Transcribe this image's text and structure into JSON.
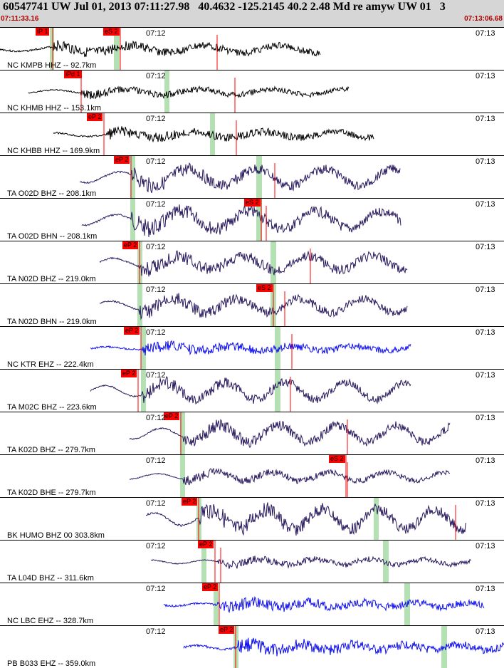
{
  "header": {
    "title": "60547741 UW Jul 01, 2013 07:11:27.98   40.4632 -125.2145 40.2 2.48 Md re amyw UW 01   3",
    "start_time": "07:11:33.16",
    "end_time": "07:13:06.68"
  },
  "colors": {
    "trace_black": "#000000",
    "trace_purple": "#2a1a5e",
    "trace_blue": "#1010ee",
    "pick_red": "#ff0000",
    "window_green": "#b4e0b4"
  },
  "panels": [
    {
      "label": "NC KMPB HHZ -- 92.7km",
      "tick_a": "07:12",
      "tick_b": "07:13",
      "picks": [
        "iP 1",
        "eS 2"
      ],
      "color": "#000000"
    },
    {
      "label": "NC KHMB HHZ -- 153.1km",
      "tick_a": "07:12",
      "tick_b": "07:13",
      "picks": [
        "iPd 1"
      ],
      "color": "#000000"
    },
    {
      "label": "NC KHBB HHZ -- 169.9km",
      "tick_a": "07:12",
      "tick_b": "07:13",
      "picks": [
        "eP 2"
      ],
      "color": "#000000"
    },
    {
      "label": "TA O02D BHZ -- 208.1km",
      "tick_a": "07:12",
      "tick_b": "07:13",
      "picks": [
        "eP 2"
      ],
      "color": "#2a1a5e"
    },
    {
      "label": "TA O02D BHN -- 208.1km",
      "tick_a": "07:12",
      "tick_b": "07:13",
      "picks": [
        "eS 2"
      ],
      "color": "#2a1a5e"
    },
    {
      "label": "TA N02D BHZ -- 219.0km",
      "tick_a": "07:12",
      "tick_b": "07:13",
      "picks": [
        "eP 2"
      ],
      "color": "#2a1a5e"
    },
    {
      "label": "TA N02D BHN -- 219.0km",
      "tick_a": "07:12",
      "tick_b": "07:13",
      "picks": [
        "eS 2"
      ],
      "color": "#2a1a5e"
    },
    {
      "label": "NC KTR EHZ -- 222.4km",
      "tick_a": "07:12",
      "tick_b": "07:13",
      "picks": [
        "eP 2"
      ],
      "color": "#1010ee"
    },
    {
      "label": "TA M02C BHZ -- 223.6km",
      "tick_a": "07:12",
      "tick_b": "07:13",
      "picks": [
        "eP 2"
      ],
      "color": "#2a1a5e"
    },
    {
      "label": "TA K02D BHZ -- 279.7km",
      "tick_a": "07:12",
      "tick_b": "07:13",
      "picks": [
        "eP 2"
      ],
      "color": "#2a1a5e"
    },
    {
      "label": "TA K02D BHE -- 279.7km",
      "tick_a": "07:12",
      "tick_b": "07:13",
      "picks": [
        "eS 2"
      ],
      "color": "#2a1a5e"
    },
    {
      "label": "BK HUMO BHZ 00 303.8km",
      "tick_a": "07:12",
      "tick_b": "07:13",
      "picks": [
        "eP 2"
      ],
      "color": "#2a1a5e"
    },
    {
      "label": "TA L04D BHZ -- 311.6km",
      "tick_a": "07:12",
      "tick_b": "07:13",
      "picks": [
        "eP 2"
      ],
      "color": "#2a1a5e"
    },
    {
      "label": "NC LBC EHZ -- 328.7km",
      "tick_a": "07:12",
      "tick_b": "07:13",
      "picks": [
        "eP 2"
      ],
      "color": "#1010ee"
    },
    {
      "label": "PB B033 EHZ -- 359.0km",
      "tick_a": "07:12",
      "tick_b": "07:13",
      "picks": [
        "eP 2"
      ],
      "color": "#1010ee"
    }
  ]
}
